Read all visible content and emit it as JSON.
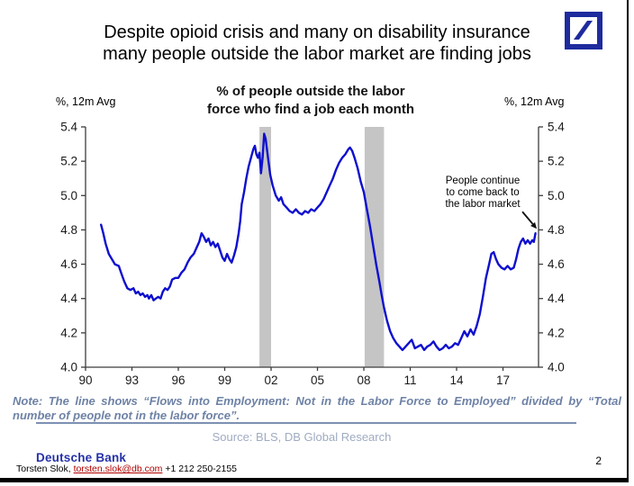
{
  "slide": {
    "title_lines": [
      "Despite opioid crisis and many on disability insurance",
      "many people outside the labor market are finding jobs"
    ],
    "page_number": "2"
  },
  "chart_data": {
    "type": "line",
    "title": "% of people outside the labor force who find a job each month",
    "title_lines": [
      "% of people outside the labor",
      "force who find a job each month"
    ],
    "ylabel_left": "%, 12m Avg",
    "ylabel_right": "%, 12m Avg",
    "ylim": [
      4.0,
      5.4
    ],
    "yticks": [
      4.0,
      4.2,
      4.4,
      4.6,
      4.8,
      5.0,
      5.2,
      5.4
    ],
    "xlim": [
      1990,
      2019.3
    ],
    "xticks": [
      {
        "value": 1990,
        "label": "90"
      },
      {
        "value": 1993,
        "label": "93"
      },
      {
        "value": 1996,
        "label": "96"
      },
      {
        "value": 1999,
        "label": "99"
      },
      {
        "value": 2002,
        "label": "02"
      },
      {
        "value": 2005,
        "label": "05"
      },
      {
        "value": 2008,
        "label": "08"
      },
      {
        "value": 2011,
        "label": "11"
      },
      {
        "value": 2014,
        "label": "14"
      },
      {
        "value": 2017,
        "label": "17"
      }
    ],
    "grid": false,
    "legend": "none",
    "axis_color": "#3c3c3c",
    "tick_label_color": "#1a1a1a",
    "band_color": "#c5c5c5",
    "recession_bands": [
      [
        2001.25,
        2002.0
      ],
      [
        2008.05,
        2009.3
      ]
    ],
    "annotation_text": "People continue to come back to the labor market",
    "annotation_lines": [
      "People continue",
      "to come back to",
      "the labor market"
    ],
    "series": [
      {
        "name": "Flows into Employment: Not in the Labor Force to Employed, divided by total not in labor force (%, 12m avg)",
        "color": "#0f0fcf",
        "points": [
          [
            1991.0,
            4.83
          ],
          [
            1991.15,
            4.78
          ],
          [
            1991.3,
            4.72
          ],
          [
            1991.5,
            4.66
          ],
          [
            1991.7,
            4.63
          ],
          [
            1991.9,
            4.6
          ],
          [
            1992.15,
            4.59
          ],
          [
            1992.3,
            4.55
          ],
          [
            1992.5,
            4.5
          ],
          [
            1992.7,
            4.46
          ],
          [
            1992.9,
            4.45
          ],
          [
            1993.1,
            4.46
          ],
          [
            1993.25,
            4.43
          ],
          [
            1993.4,
            4.44
          ],
          [
            1993.55,
            4.42
          ],
          [
            1993.7,
            4.43
          ],
          [
            1993.85,
            4.41
          ],
          [
            1994.0,
            4.42
          ],
          [
            1994.1,
            4.4
          ],
          [
            1994.25,
            4.42
          ],
          [
            1994.4,
            4.39
          ],
          [
            1994.55,
            4.4
          ],
          [
            1994.7,
            4.41
          ],
          [
            1994.85,
            4.4
          ],
          [
            1995.0,
            4.44
          ],
          [
            1995.15,
            4.46
          ],
          [
            1995.3,
            4.45
          ],
          [
            1995.45,
            4.47
          ],
          [
            1995.6,
            4.51
          ],
          [
            1995.8,
            4.52
          ],
          [
            1996.0,
            4.52
          ],
          [
            1996.2,
            4.55
          ],
          [
            1996.4,
            4.57
          ],
          [
            1996.6,
            4.61
          ],
          [
            1996.8,
            4.64
          ],
          [
            1997.0,
            4.66
          ],
          [
            1997.2,
            4.7
          ],
          [
            1997.35,
            4.73
          ],
          [
            1997.5,
            4.78
          ],
          [
            1997.65,
            4.76
          ],
          [
            1997.8,
            4.73
          ],
          [
            1997.95,
            4.75
          ],
          [
            1998.1,
            4.71
          ],
          [
            1998.25,
            4.73
          ],
          [
            1998.4,
            4.7
          ],
          [
            1998.55,
            4.72
          ],
          [
            1998.7,
            4.68
          ],
          [
            1998.85,
            4.64
          ],
          [
            1999.0,
            4.62
          ],
          [
            1999.15,
            4.66
          ],
          [
            1999.3,
            4.63
          ],
          [
            1999.45,
            4.61
          ],
          [
            1999.6,
            4.65
          ],
          [
            1999.75,
            4.7
          ],
          [
            1999.9,
            4.78
          ],
          [
            2000.0,
            4.85
          ],
          [
            2000.1,
            4.95
          ],
          [
            2000.25,
            5.02
          ],
          [
            2000.4,
            5.1
          ],
          [
            2000.55,
            5.17
          ],
          [
            2000.7,
            5.22
          ],
          [
            2000.85,
            5.27
          ],
          [
            2000.95,
            5.29
          ],
          [
            2001.05,
            5.24
          ],
          [
            2001.15,
            5.22
          ],
          [
            2001.25,
            5.25
          ],
          [
            2001.35,
            5.13
          ],
          [
            2001.45,
            5.22
          ],
          [
            2001.55,
            5.36
          ],
          [
            2001.65,
            5.33
          ],
          [
            2001.8,
            5.22
          ],
          [
            2001.95,
            5.12
          ],
          [
            2002.1,
            5.06
          ],
          [
            2002.3,
            5.0
          ],
          [
            2002.5,
            4.97
          ],
          [
            2002.65,
            4.99
          ],
          [
            2002.8,
            4.95
          ],
          [
            2003.0,
            4.93
          ],
          [
            2003.2,
            4.91
          ],
          [
            2003.4,
            4.9
          ],
          [
            2003.6,
            4.92
          ],
          [
            2003.8,
            4.9
          ],
          [
            2004.0,
            4.89
          ],
          [
            2004.2,
            4.91
          ],
          [
            2004.4,
            4.9
          ],
          [
            2004.6,
            4.92
          ],
          [
            2004.8,
            4.91
          ],
          [
            2005.0,
            4.93
          ],
          [
            2005.2,
            4.95
          ],
          [
            2005.4,
            4.98
          ],
          [
            2005.6,
            5.02
          ],
          [
            2005.8,
            5.06
          ],
          [
            2006.0,
            5.1
          ],
          [
            2006.2,
            5.15
          ],
          [
            2006.4,
            5.19
          ],
          [
            2006.6,
            5.22
          ],
          [
            2006.8,
            5.24
          ],
          [
            2007.0,
            5.27
          ],
          [
            2007.1,
            5.28
          ],
          [
            2007.25,
            5.26
          ],
          [
            2007.4,
            5.22
          ],
          [
            2007.6,
            5.16
          ],
          [
            2007.8,
            5.08
          ],
          [
            2008.0,
            5.02
          ],
          [
            2008.2,
            4.92
          ],
          [
            2008.4,
            4.82
          ],
          [
            2008.6,
            4.71
          ],
          [
            2008.8,
            4.6
          ],
          [
            2009.0,
            4.5
          ],
          [
            2009.15,
            4.42
          ],
          [
            2009.3,
            4.35
          ],
          [
            2009.5,
            4.27
          ],
          [
            2009.7,
            4.21
          ],
          [
            2009.9,
            4.17
          ],
          [
            2010.1,
            4.14
          ],
          [
            2010.3,
            4.12
          ],
          [
            2010.5,
            4.1
          ],
          [
            2010.7,
            4.12
          ],
          [
            2010.9,
            4.14
          ],
          [
            2011.1,
            4.16
          ],
          [
            2011.3,
            4.11
          ],
          [
            2011.5,
            4.12
          ],
          [
            2011.7,
            4.13
          ],
          [
            2011.9,
            4.1
          ],
          [
            2012.1,
            4.12
          ],
          [
            2012.3,
            4.13
          ],
          [
            2012.5,
            4.15
          ],
          [
            2012.7,
            4.12
          ],
          [
            2012.9,
            4.1
          ],
          [
            2013.1,
            4.11
          ],
          [
            2013.3,
            4.13
          ],
          [
            2013.5,
            4.11
          ],
          [
            2013.7,
            4.12
          ],
          [
            2013.9,
            4.14
          ],
          [
            2014.1,
            4.13
          ],
          [
            2014.3,
            4.17
          ],
          [
            2014.5,
            4.21
          ],
          [
            2014.7,
            4.18
          ],
          [
            2014.9,
            4.22
          ],
          [
            2015.1,
            4.19
          ],
          [
            2015.3,
            4.24
          ],
          [
            2015.5,
            4.31
          ],
          [
            2015.7,
            4.41
          ],
          [
            2015.9,
            4.52
          ],
          [
            2016.1,
            4.6
          ],
          [
            2016.25,
            4.66
          ],
          [
            2016.4,
            4.67
          ],
          [
            2016.55,
            4.63
          ],
          [
            2016.7,
            4.6
          ],
          [
            2016.9,
            4.58
          ],
          [
            2017.1,
            4.57
          ],
          [
            2017.3,
            4.59
          ],
          [
            2017.5,
            4.57
          ],
          [
            2017.7,
            4.58
          ],
          [
            2017.85,
            4.63
          ],
          [
            2018.0,
            4.69
          ],
          [
            2018.15,
            4.73
          ],
          [
            2018.3,
            4.75
          ],
          [
            2018.45,
            4.72
          ],
          [
            2018.6,
            4.74
          ],
          [
            2018.75,
            4.72
          ],
          [
            2018.9,
            4.74
          ],
          [
            2019.0,
            4.73
          ],
          [
            2019.1,
            4.78
          ]
        ]
      }
    ]
  },
  "note": {
    "line1": "Note: The line shows “Flows into Employment: Not in the Labor Force to Employed” divided by “Total",
    "line2": "number of people not in the labor force”."
  },
  "source": {
    "text": "Source: BLS, DB Global Research"
  },
  "footer": {
    "bank": "Deutsche Bank",
    "author": "Torsten Slok, ",
    "email": "torsten.slok@db.com",
    "phone": " +1 212 250-2155"
  },
  "colors": {
    "line_blue": "#0f0fcf",
    "db_navy": "#1e2b9e",
    "note_blue_gray": "#6e82a6",
    "source_gray": "#9fabc2",
    "band_gray": "#c5c5c5",
    "email_red": "#b00000"
  }
}
